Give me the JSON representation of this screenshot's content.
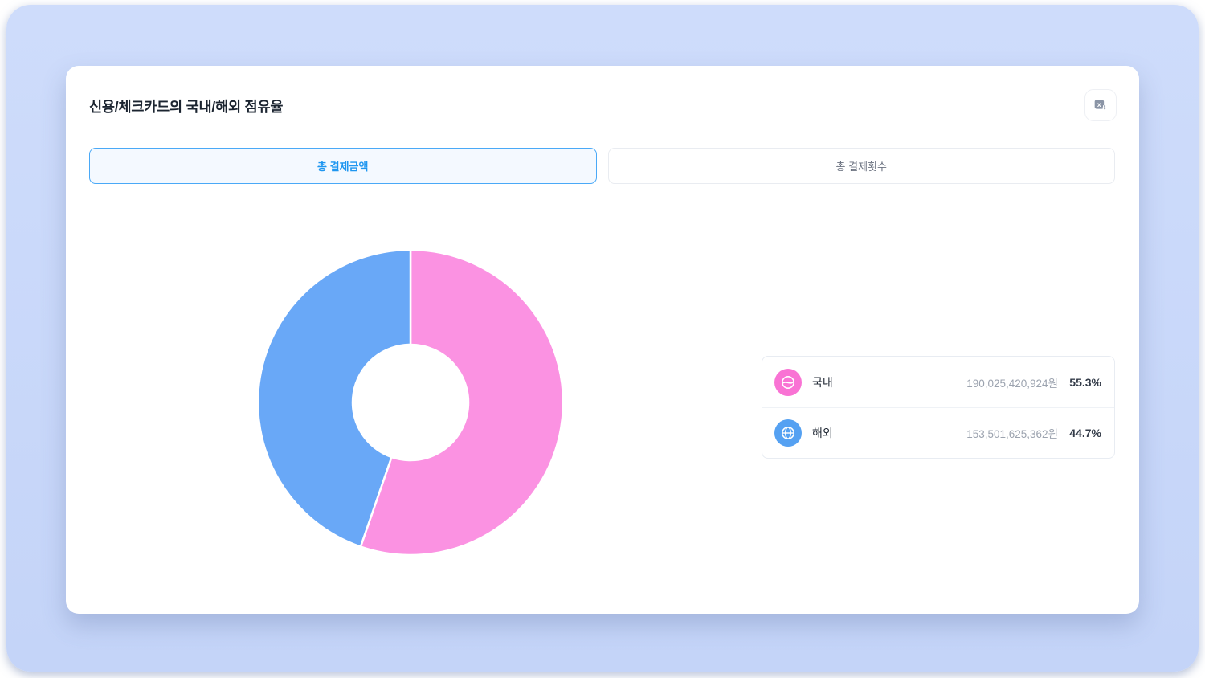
{
  "page": {
    "background_color": "#c9d8fa",
    "card_color": "#ffffff"
  },
  "card": {
    "title": "신용/체크카드의 국내/해외 점유율",
    "export_icon": "excel-download-icon"
  },
  "tabs": [
    {
      "label": "총 결제금액",
      "active": true
    },
    {
      "label": "총 결제횟수",
      "active": false
    }
  ],
  "chart_data": {
    "type": "pie",
    "donut": true,
    "title": "신용/체크카드의 국내/해외 점유율 (총 결제금액)",
    "categories": [
      "국내",
      "해외"
    ],
    "values": [
      55.3,
      44.7
    ],
    "amounts_krw": [
      190025420924,
      153501625362
    ],
    "amount_labels": [
      "190,025,420,924원",
      "153,501,625,362원"
    ],
    "percent_labels": [
      "55.3%",
      "44.7%"
    ],
    "colors": [
      "#FB92E2",
      "#69A8F7"
    ],
    "start_angle_deg": 0,
    "clockwise": true,
    "inner_radius_ratio": 0.38,
    "slice_gap_color": "#ffffff",
    "legend_position": "right"
  },
  "legend": {
    "rows": [
      {
        "icon": "domestic-wave-icon",
        "icon_color": "#F973D4",
        "label": "국내",
        "value": "190,025,420,924원",
        "percent": "55.3%"
      },
      {
        "icon": "globe-icon",
        "icon_color": "#55A1F2",
        "label": "해외",
        "value": "153,501,625,362원",
        "percent": "44.7%"
      }
    ]
  }
}
